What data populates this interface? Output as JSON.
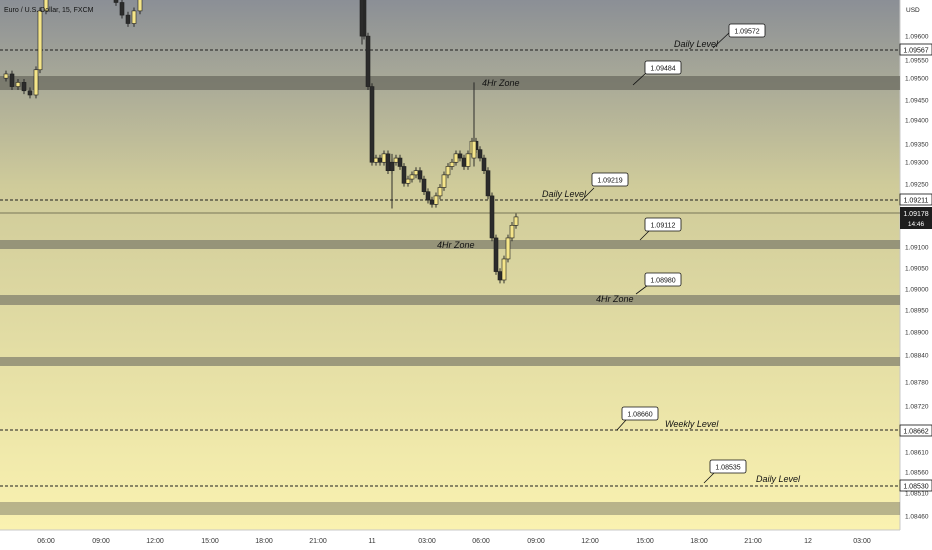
{
  "chart_data": {
    "type": "candlestick",
    "title": "Euro / U.S. Dollar, 15, FXCM",
    "currency": "USD",
    "price_axis": {
      "range": [
        1.0847,
        1.0964
      ],
      "ticks": [
        "1.09600",
        "1.09550",
        "1.09500",
        "1.09450",
        "1.09400",
        "1.09350",
        "1.09300",
        "1.09250",
        "1.09100",
        "1.09050",
        "1.09000",
        "1.08950",
        "1.08900",
        "1.08840",
        "1.08780",
        "1.08720",
        "1.08660",
        "1.08610",
        "1.08560",
        "1.08510",
        "1.08460"
      ]
    },
    "time_axis": {
      "ticks": [
        "06:00",
        "09:00",
        "12:00",
        "15:00",
        "18:00",
        "21:00",
        "11",
        "03:00",
        "06:00",
        "09:00",
        "12:00",
        "15:00",
        "18:00",
        "21:00",
        "12",
        "03:00"
      ]
    },
    "price_tags": [
      {
        "value": "1.09567",
        "style": "outline"
      },
      {
        "value": "1.09211",
        "style": "outline"
      },
      {
        "value": "1.09178",
        "sub": "14:46",
        "style": "dark"
      },
      {
        "value": "1.08662",
        "style": "outline"
      },
      {
        "value": "1.08530",
        "style": "outline"
      }
    ],
    "horizontal_lines": [
      {
        "price": 1.09567,
        "style": "dashed",
        "label": "Daily Level"
      },
      {
        "price": 1.09211,
        "style": "dashed",
        "label": "Daily Level"
      },
      {
        "price": 1.08662,
        "style": "dashed",
        "label": "Weekly Level"
      },
      {
        "price": 1.0853,
        "style": "dashed",
        "label": "Daily Level"
      },
      {
        "price": 1.09178,
        "style": "solid-thin",
        "label": ""
      }
    ],
    "zones": [
      {
        "from": 1.0947,
        "to": 1.095,
        "label": "4Hr Zone"
      },
      {
        "from": 1.09097,
        "to": 1.09117,
        "label": "4Hr Zone"
      },
      {
        "from": 1.0896,
        "to": 1.0898,
        "label": "4Hr Zone"
      },
      {
        "from": 1.08825,
        "to": 1.0884,
        "label": ""
      },
      {
        "from": 1.08475,
        "to": 1.0849,
        "label": ""
      }
    ],
    "callouts": [
      {
        "value": "1.09572"
      },
      {
        "value": "1.09484"
      },
      {
        "value": "1.09219"
      },
      {
        "value": "1.09112"
      },
      {
        "value": "1.08980"
      },
      {
        "value": "1.08660"
      },
      {
        "value": "1.08535"
      }
    ],
    "candles": [
      {
        "o": 1.09495,
        "h": 1.0953,
        "l": 1.0946,
        "c": 1.0948
      },
      {
        "o": 1.0948,
        "h": 1.0951,
        "l": 1.09455,
        "c": 1.0947
      },
      {
        "o": 1.0947,
        "h": 1.095,
        "l": 1.09445,
        "c": 1.0946
      },
      {
        "o": 1.0946,
        "h": 1.0951,
        "l": 1.0945,
        "c": 1.09505
      },
      {
        "o": 1.09505,
        "h": 1.0952,
        "l": 1.09455,
        "c": 1.0947
      },
      {
        "o": 1.0947,
        "h": 1.095,
        "l": 1.0944,
        "c": 1.0946
      },
      {
        "o": 1.0946,
        "h": 1.0948,
        "l": 1.09425,
        "c": 1.0946
      },
      {
        "o": 1.0946,
        "h": 1.097,
        "l": 1.0944,
        "c": 1.0969
      },
      {
        "o": 1.0969,
        "h": 1.097,
        "l": 1.0968,
        "c": 1.09695
      }
    ]
  },
  "annotations": {
    "daily_level": "Daily Level",
    "weekly_level": "Weekly Level",
    "zone_4hr": "4Hr Zone"
  },
  "colors": {
    "bull": "#f5e58a",
    "bear": "#2b2b2b",
    "wick": "#1f1f1f",
    "zone": "#6b6b60",
    "bg_top": "#8a8f95",
    "bg_bottom": "#f5eeaa"
  }
}
